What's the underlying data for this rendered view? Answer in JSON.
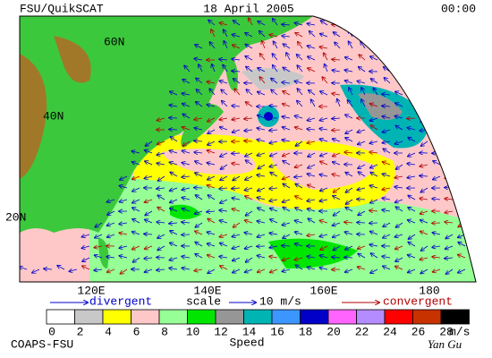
{
  "header": {
    "left": "FSU/QuikSCAT",
    "center": "18 April 2005",
    "right": "00:00"
  },
  "map": {
    "lat_labels": [
      "60N",
      "40N",
      "20N"
    ],
    "lon_labels": [
      "120E",
      "140E",
      "160E",
      "180"
    ]
  },
  "legend": {
    "divergent": "divergent",
    "scale": "scale",
    "scale_value": "10 m/s",
    "convergent": "convergent"
  },
  "colorbar": {
    "labels": [
      "0",
      "2",
      "4",
      "6",
      "8",
      "10",
      "12",
      "14",
      "16",
      "18",
      "20",
      "22",
      "24",
      "26",
      "28"
    ],
    "unit": "m/s",
    "colors": [
      "#ffffff",
      "#c8c8c8",
      "#ffff00",
      "#ffc8c8",
      "#96ff96",
      "#00e600",
      "#969696",
      "#00b4b4",
      "#3c96ff",
      "#0000c8",
      "#ff64ff",
      "#b48cff",
      "#ff0000",
      "#c83200",
      "#000000"
    ]
  },
  "footer": {
    "left": "COAPS-FSU",
    "center": "Speed",
    "signature": "Yan Gu"
  }
}
